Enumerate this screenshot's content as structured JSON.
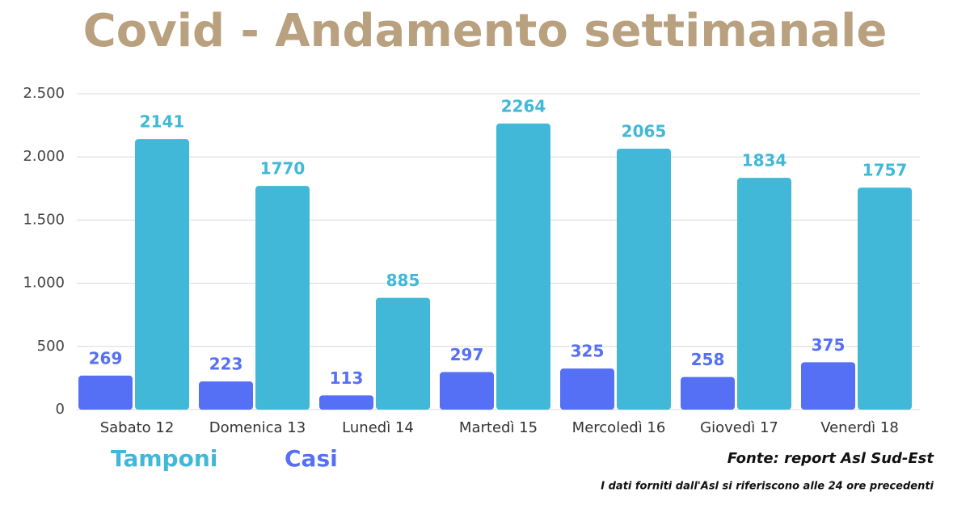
{
  "chart_data": {
    "type": "bar",
    "title": "Covid - Andamento settimanale",
    "categories": [
      "Sabato 12",
      "Domenica 13",
      "Lunedì 14",
      "Martedì 15",
      "Mercoledì 16",
      "Giovedì 17",
      "Venerdì 18"
    ],
    "series": [
      {
        "name": "Casi",
        "color": "#5570f5",
        "values": [
          269,
          223,
          113,
          297,
          325,
          258,
          375
        ]
      },
      {
        "name": "Tamponi",
        "color": "#41b8d8",
        "values": [
          2141,
          1770,
          885,
          2264,
          2065,
          1834,
          1757
        ]
      }
    ],
    "ylim": [
      0,
      2500
    ],
    "yticks": [
      0,
      500,
      {
        "value": 1000,
        "label": "1.000"
      },
      {
        "value": 1500,
        "label": "1.500"
      },
      {
        "value": 2000,
        "label": "2.000"
      },
      {
        "value": 2500,
        "label": "2.500"
      }
    ],
    "grid": true,
    "source": "Fonte: report Asl Sud-Est",
    "note": "I dati forniti dall'Asl si riferiscono alle 24 ore precedenti"
  }
}
